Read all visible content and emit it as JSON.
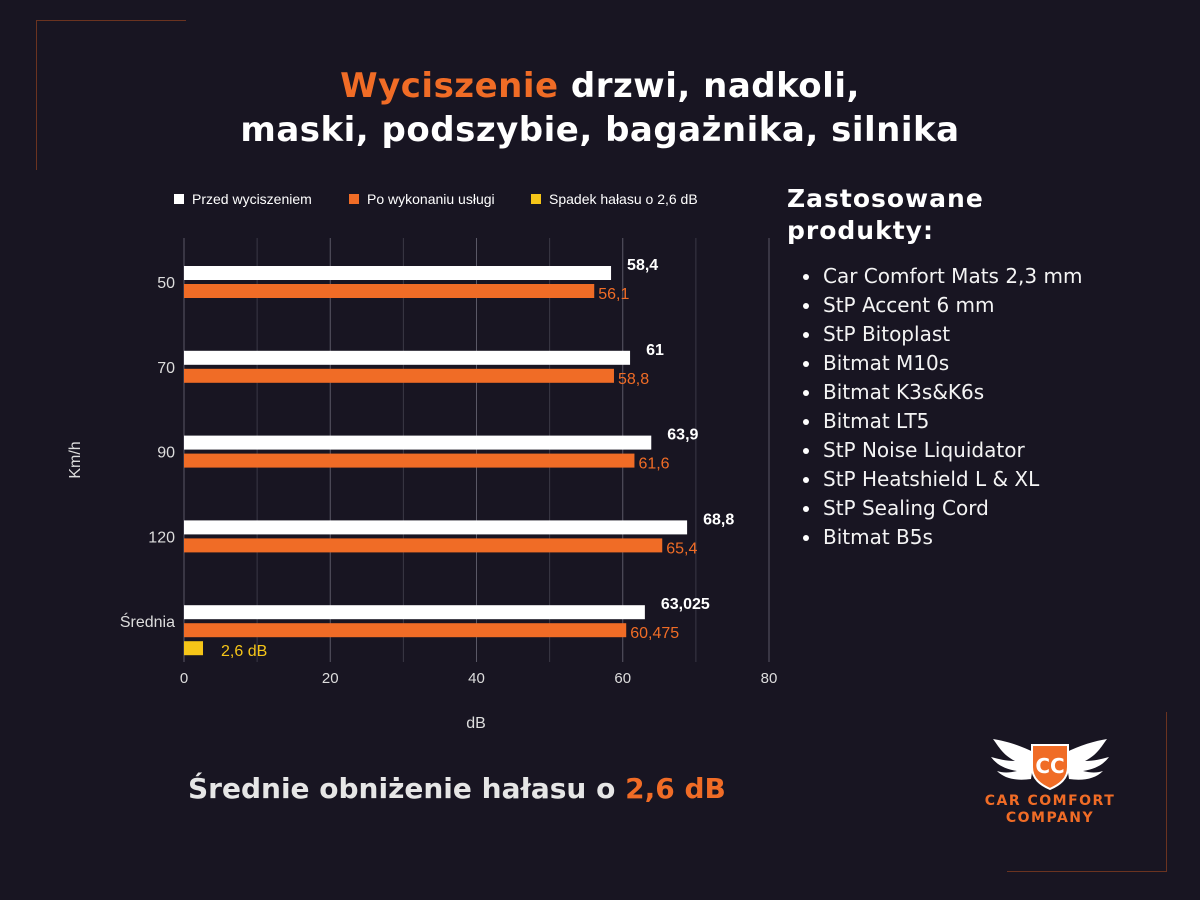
{
  "title": {
    "accent": "Wyciszenie",
    "rest_line1": " drzwi, nadkoli,",
    "line2": "maski, podszybie, bagażnika, silnika"
  },
  "colors": {
    "accent": "#f06c26",
    "before": "#ffffff",
    "after": "#f06c26",
    "drop": "#f5c518",
    "background": "#181522"
  },
  "chart_data": {
    "type": "bar",
    "orientation": "horizontal",
    "categories": [
      "50",
      "70",
      "90",
      "120",
      "Średnia"
    ],
    "series": [
      {
        "name": "Przed wyciszeniem",
        "color": "#ffffff",
        "label_color": "#ffffff",
        "values": [
          58.4,
          61,
          63.9,
          68.8,
          63.025
        ],
        "labels": [
          "58,4",
          "61",
          "63,9",
          "68,8",
          "63,025"
        ]
      },
      {
        "name": "Po wykonaniu usługi",
        "color": "#f06c26",
        "label_color": "#f06c26",
        "values": [
          56.1,
          58.8,
          61.6,
          65.4,
          60.475
        ],
        "labels": [
          "56,1",
          "58,8",
          "61,6",
          "65,4",
          "60,475"
        ]
      },
      {
        "name": "Spadek hałasu o 2,6 dB",
        "color": "#f5c518",
        "label_color": "#f5c518",
        "values": [
          null,
          null,
          null,
          null,
          2.6
        ],
        "labels": [
          "",
          "",
          "",
          "",
          "2,6 dB"
        ]
      }
    ],
    "xlabel": "dB",
    "ylabel": "Km/h",
    "xlim": [
      0,
      80
    ],
    "xticks": [
      0,
      20,
      40,
      60,
      80
    ],
    "grid": true,
    "legend": "top"
  },
  "products": {
    "title_line1": "Zastosowane",
    "title_line2": "produkty:",
    "items": [
      "Car Comfort Mats 2,3 mm",
      "StP Accent 6 mm",
      "StP Bitoplast",
      "Bitmat M10s",
      "Bitmat K3s&K6s",
      "Bitmat LT5",
      "StP Noise Liquidator",
      "StP Heatshield L & XL",
      "StP Sealing Cord",
      "Bitmat B5s"
    ]
  },
  "summary": {
    "prefix": "Średnie obniżenie hałasu o ",
    "value": "2,6 dB"
  },
  "logo": {
    "initials": "CC",
    "line1": "CAR COMFORT",
    "line2": "COMPANY",
    "icon": "winged-shield-icon"
  }
}
